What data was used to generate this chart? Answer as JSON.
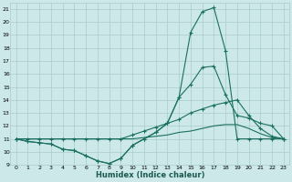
{
  "xlabel": "Humidex (Indice chaleur)",
  "bg_color": "#cce8e8",
  "grid_color": "#aacccc",
  "line_color": "#1a7060",
  "xlim": [
    -0.5,
    23.5
  ],
  "ylim": [
    9,
    21.5
  ],
  "yticks": [
    9,
    10,
    11,
    12,
    13,
    14,
    15,
    16,
    17,
    18,
    19,
    20,
    21
  ],
  "xticks": [
    0,
    1,
    2,
    3,
    4,
    5,
    6,
    7,
    8,
    9,
    10,
    11,
    12,
    13,
    14,
    15,
    16,
    17,
    18,
    19,
    20,
    21,
    22,
    23
  ],
  "line1_x": [
    0,
    1,
    2,
    3,
    4,
    5,
    6,
    7,
    8,
    9,
    10,
    11,
    12,
    13,
    14,
    15,
    16,
    17,
    18,
    19,
    20,
    21,
    22,
    23
  ],
  "line1_y": [
    11.0,
    10.8,
    10.7,
    10.6,
    10.2,
    10.1,
    9.7,
    9.3,
    9.1,
    9.5,
    10.5,
    11.0,
    11.5,
    12.2,
    14.2,
    15.2,
    16.5,
    16.6,
    14.4,
    12.8,
    12.6,
    12.2,
    12.0,
    11.0
  ],
  "line2_x": [
    0,
    1,
    2,
    3,
    4,
    5,
    6,
    7,
    8,
    9,
    10,
    11,
    12,
    13,
    14,
    15,
    16,
    17,
    18,
    19,
    20,
    21,
    22,
    23
  ],
  "line2_y": [
    11.0,
    10.8,
    10.7,
    10.6,
    10.2,
    10.1,
    9.7,
    9.3,
    9.1,
    9.5,
    10.5,
    11.0,
    11.5,
    12.2,
    14.2,
    19.2,
    20.8,
    21.1,
    17.8,
    11.0,
    11.0,
    11.0,
    11.0,
    11.0
  ],
  "line3_x": [
    0,
    1,
    2,
    3,
    4,
    5,
    6,
    7,
    8,
    9,
    10,
    11,
    12,
    13,
    14,
    15,
    16,
    17,
    18,
    19,
    20,
    21,
    22,
    23
  ],
  "line3_y": [
    11.0,
    11.0,
    11.0,
    11.0,
    11.0,
    11.0,
    11.0,
    11.0,
    11.0,
    11.0,
    11.3,
    11.6,
    11.9,
    12.2,
    12.5,
    13.0,
    13.3,
    13.6,
    13.8,
    14.0,
    12.8,
    11.8,
    11.2,
    11.0
  ],
  "line4_x": [
    0,
    1,
    2,
    3,
    4,
    5,
    6,
    7,
    8,
    9,
    10,
    11,
    12,
    13,
    14,
    15,
    16,
    17,
    18,
    19,
    20,
    21,
    22,
    23
  ],
  "line4_y": [
    11.0,
    11.0,
    11.0,
    11.0,
    11.0,
    11.0,
    11.0,
    11.0,
    11.0,
    11.0,
    11.0,
    11.1,
    11.2,
    11.3,
    11.5,
    11.6,
    11.8,
    12.0,
    12.1,
    12.1,
    11.8,
    11.4,
    11.1,
    11.0
  ]
}
